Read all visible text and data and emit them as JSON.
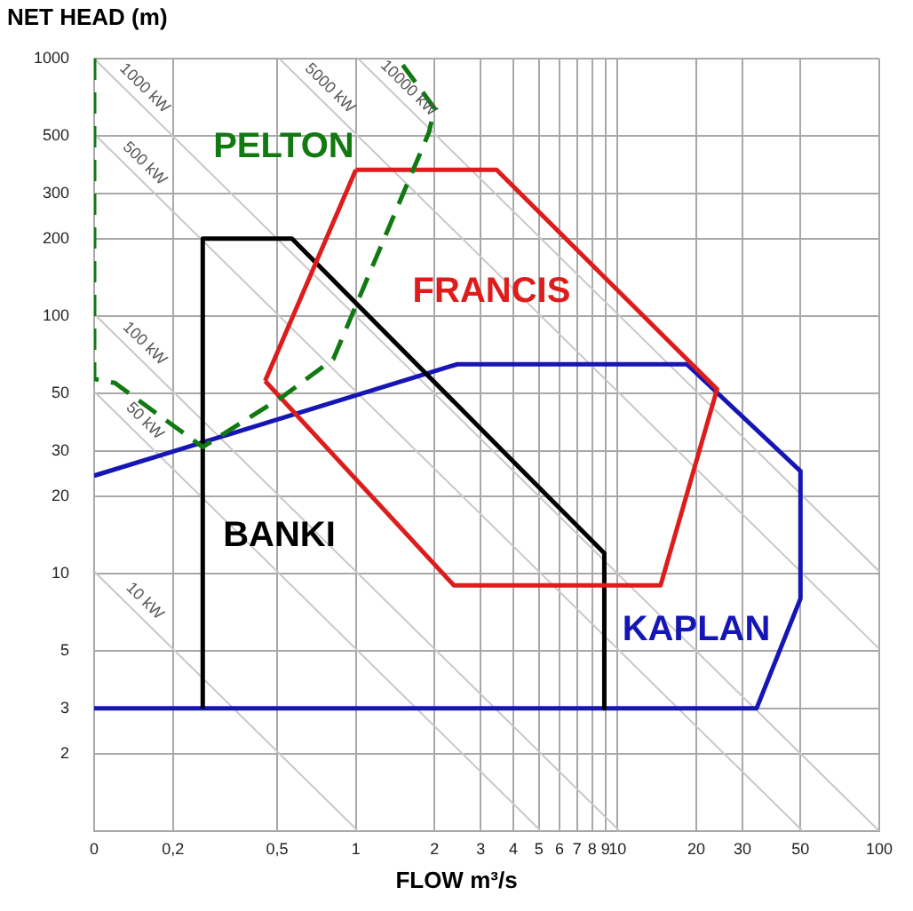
{
  "chart_data": {
    "type": "line",
    "xlabel": "FLOW m³/s",
    "ylabel": "NET HEAD (m)",
    "log": "xy",
    "grid": true,
    "legend": false,
    "marker": "none",
    "xlim": [
      0.1,
      100
    ],
    "ylim": [
      1,
      1000
    ],
    "xticks": [
      {
        "value": 0.1,
        "label": "0"
      },
      {
        "value": 0.2,
        "label": "0,2"
      },
      {
        "value": 0.5,
        "label": "0,5"
      },
      1,
      2,
      3,
      4,
      5,
      6,
      7,
      8,
      9,
      10,
      20,
      30,
      50,
      100
    ],
    "yticks": [
      2,
      3,
      5,
      10,
      20,
      30,
      50,
      100,
      200,
      300,
      500,
      1000
    ],
    "series": [
      {
        "name": "PELTON",
        "color": "#107a10",
        "line_style": "dashed",
        "x": [
          0.1,
          0.1,
          0.12,
          0.26,
          0.53,
          0.82,
          1.9,
          2,
          1.45
        ],
        "values": [
          1000,
          57,
          55,
          31,
          49,
          68,
          515,
          640,
          1000
        ]
      },
      {
        "name": "FRANCIS",
        "color": "#dd1c1c",
        "line_style": "solid",
        "x": [
          1,
          3.45,
          24,
          14.6,
          2.37,
          0.45
        ],
        "values": [
          370,
          370,
          52,
          9,
          9,
          56
        ]
      },
      {
        "name": "BANKI",
        "color": "#000000",
        "line_style": "solid",
        "x": [
          0.26,
          0.26,
          0.57,
          8.9,
          8.9
        ],
        "values": [
          3,
          200,
          200,
          12,
          3
        ]
      },
      {
        "name": "KAPLAN",
        "color": "#1616b4",
        "line_style": "solid",
        "x": [
          0.1,
          2.44,
          18.4,
          50,
          50,
          34,
          0.1
        ],
        "values": [
          24,
          65,
          65,
          25,
          8,
          3,
          3
        ]
      },
      {
        "name": "10 kW",
        "color": "#c8c8c8",
        "line_style": "solid",
        "x": [
          0.1,
          1.02
        ],
        "values": [
          10.2,
          1
        ]
      },
      {
        "name": "50 kW",
        "color": "#c8c8c8",
        "line_style": "solid",
        "x": [
          0.1,
          5.1
        ],
        "values": [
          51,
          1
        ]
      },
      {
        "name": "100 kW",
        "color": "#c8c8c8",
        "line_style": "solid",
        "x": [
          0.1,
          10.2
        ],
        "values": [
          102,
          1
        ]
      },
      {
        "name": "500 kW",
        "color": "#c8c8c8",
        "line_style": "solid",
        "x": [
          0.1,
          51
        ],
        "values": [
          510,
          1
        ]
      },
      {
        "name": "1000 kW",
        "color": "#c8c8c8",
        "line_style": "solid",
        "x": [
          0.1,
          100
        ],
        "values": [
          1000,
          1
        ]
      },
      {
        "name": "5000 kW",
        "color": "#c8c8c8",
        "line_style": "solid",
        "x": [
          0.51,
          100
        ],
        "values": [
          1000,
          5.1
        ]
      },
      {
        "name": "10000 kW",
        "color": "#c8c8c8",
        "line_style": "solid",
        "x": [
          1.02,
          100
        ],
        "values": [
          1000,
          10.2
        ]
      }
    ]
  }
}
